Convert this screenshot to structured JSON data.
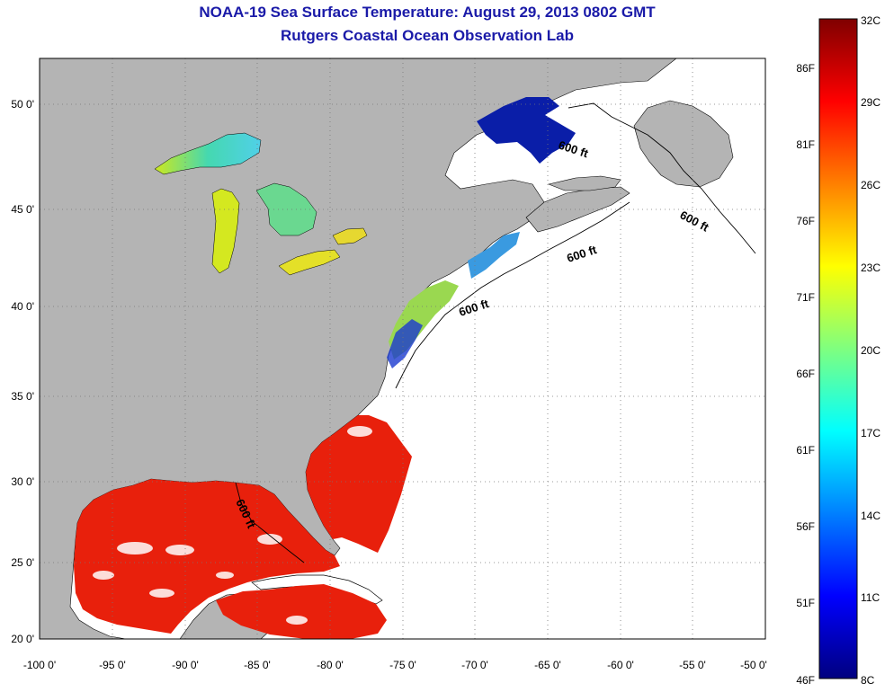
{
  "title": "NOAA-19 Sea Surface Temperature:  August 29, 2013 0802 GMT",
  "subtitle": "Rutgers Coastal Ocean Observation Lab",
  "x_ticks": [
    "-100 0'",
    "-95 0'",
    "-90 0'",
    "-85 0'",
    "-80 0'",
    "-75 0'",
    "-70 0'",
    "-65 0'",
    "-60 0'",
    "-55 0'",
    "-50 0'"
  ],
  "y_ticks": [
    "50 0'",
    "45 0'",
    "40 0'",
    "35 0'",
    "30 0'",
    "25 0'",
    "20 0'"
  ],
  "contour_label": "600 ft",
  "colorbar": {
    "celsius": [
      "32C",
      "29C",
      "26C",
      "23C",
      "20C",
      "17C",
      "14C",
      "11C",
      "8C"
    ],
    "fahrenheit": [
      "86F",
      "81F",
      "76F",
      "71F",
      "66F",
      "61F",
      "56F",
      "51F",
      "46F"
    ]
  },
  "colors": {
    "land": "#b4b4b4",
    "ocean_nodata": "#ffffff",
    "title": "#1a1aa8",
    "warm": "#e8200c",
    "cold": "#0a1ea8"
  },
  "map_extent": {
    "lon": [
      -100,
      -50
    ],
    "lat": [
      20,
      52.5
    ]
  }
}
